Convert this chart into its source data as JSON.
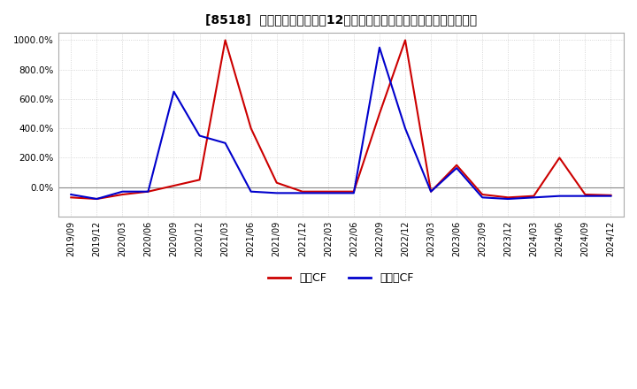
{
  "title": "[8518]  キャッシュフローの12か月移動合計の対前年同期増減率の推移",
  "ylim": [
    -200,
    1050
  ],
  "yticks": [
    0,
    200,
    400,
    600,
    800,
    1000
  ],
  "ytick_labels": [
    "0.0%",
    "200.0%",
    "400.0%",
    "600.0%",
    "800.0%",
    "1000.0%"
  ],
  "background_color": "#ffffff",
  "grid_color": "#cccccc",
  "legend_labels": [
    "営業CF",
    "フリーCF"
  ],
  "dates": [
    "2019/09",
    "2019/12",
    "2020/03",
    "2020/06",
    "2020/09",
    "2020/12",
    "2021/03",
    "2021/06",
    "2021/09",
    "2021/12",
    "2022/03",
    "2022/06",
    "2022/09",
    "2022/12",
    "2023/03",
    "2023/06",
    "2023/09",
    "2023/12",
    "2024/03",
    "2024/06",
    "2024/09",
    "2024/12"
  ],
  "op_cf": [
    -70,
    -80,
    -50,
    -30,
    10,
    50,
    1000,
    400,
    30,
    -30,
    -30,
    -30,
    500,
    1000,
    -30,
    150,
    -50,
    -70,
    -60,
    200,
    -50,
    -55
  ],
  "free_cf": [
    -50,
    -80,
    -30,
    -30,
    650,
    350,
    300,
    -30,
    -40,
    -40,
    -40,
    -40,
    950,
    400,
    -30,
    130,
    -70,
    -80,
    -70,
    -60,
    -60,
    -60
  ],
  "op_color": "#cc0000",
  "free_color": "#0000cc"
}
